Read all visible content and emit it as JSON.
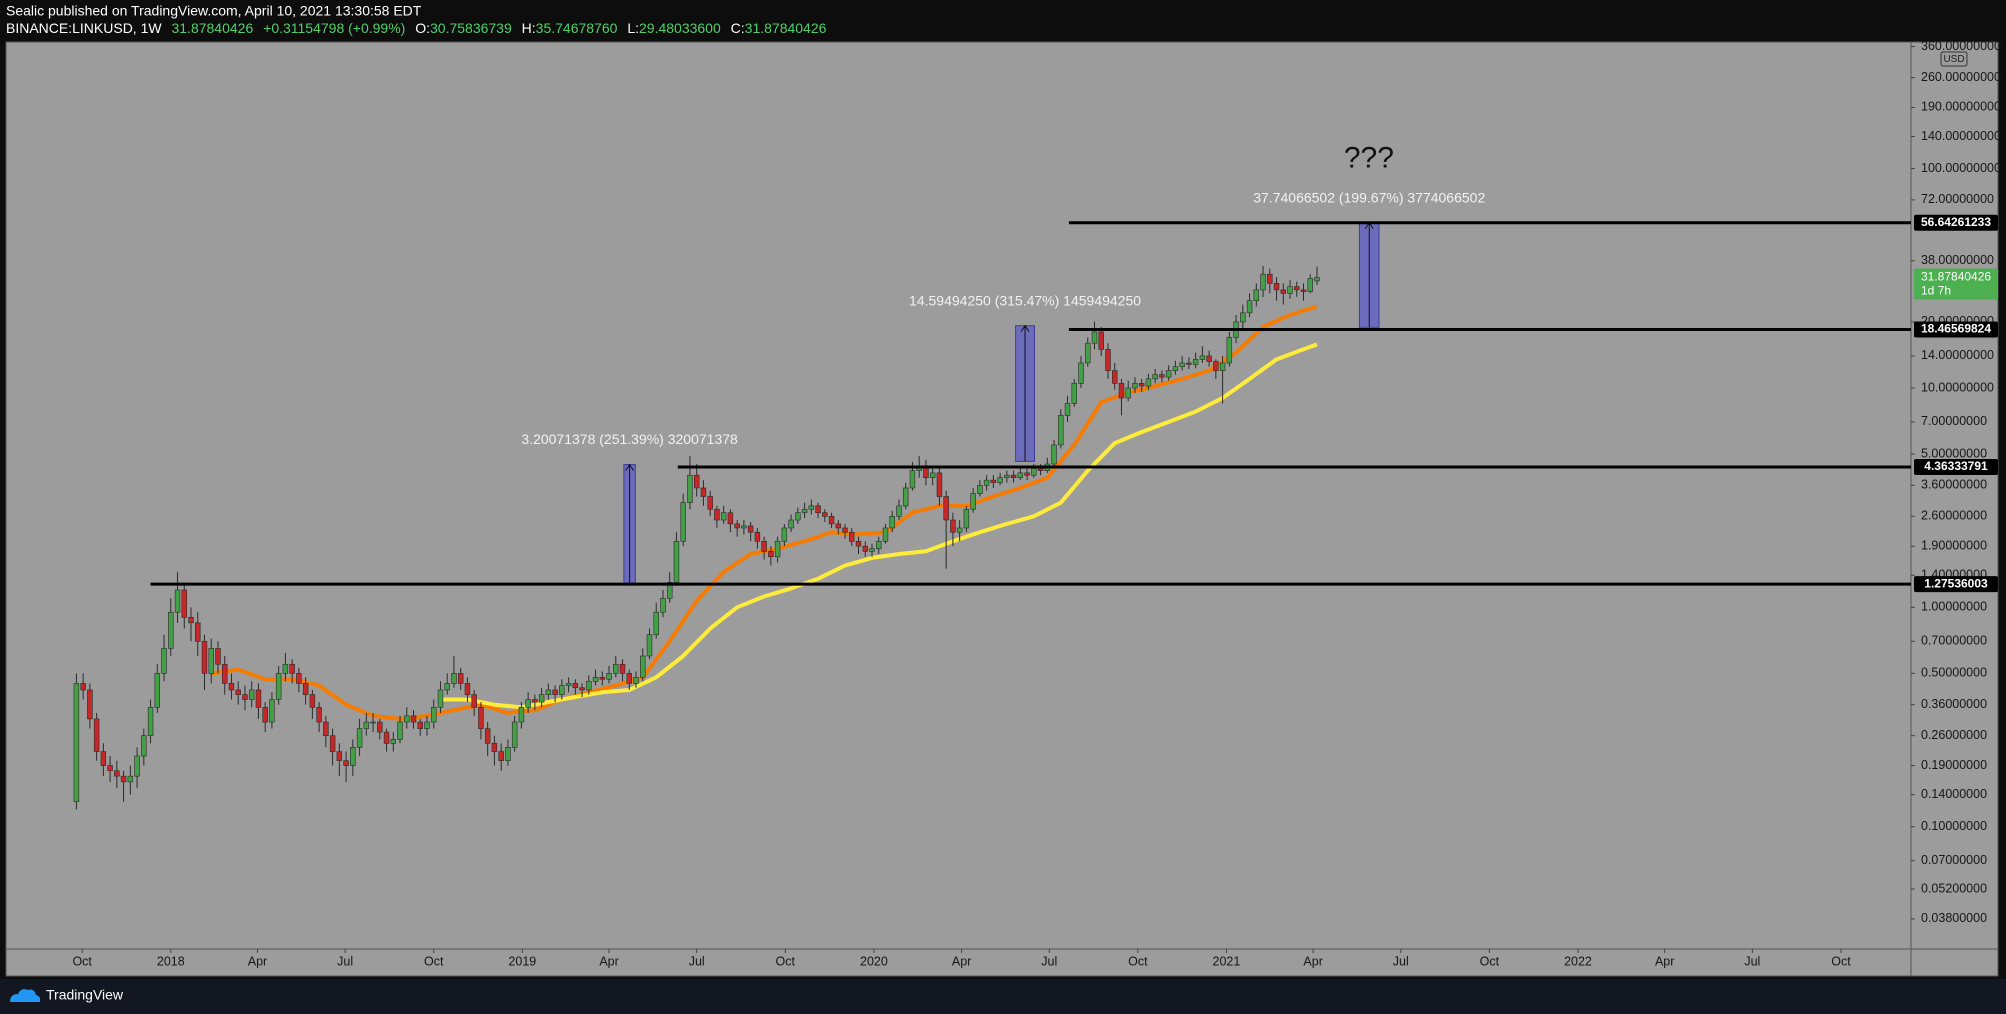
{
  "header": {
    "line1": "Sealic published on TradingView.com, April 10, 2021 13:30:58 EDT",
    "symbol": "BINANCE:LINKUSD, 1W",
    "price": "31.87840426",
    "change": "+0.31154798 (+0.99%)",
    "ohlc": [
      [
        "O:",
        "30.75836739"
      ],
      [
        "H:",
        "35.74678760"
      ],
      [
        "L:",
        "29.48033600"
      ],
      [
        "C:",
        "31.87840426"
      ]
    ]
  },
  "chart_data": {
    "type": "candlestick",
    "log_scale": true,
    "grid": false,
    "currency": "USD",
    "up_color": "#43a047",
    "down_color": "#c62828",
    "xlim": [
      -10.44,
      272.1
    ],
    "ylim": [
      0.0277,
      377.6
    ],
    "xticks": [
      {
        "value": 0.86,
        "label": "Oct"
      },
      {
        "value": 14,
        "label": "2018"
      },
      {
        "value": 26.86,
        "label": "Apr"
      },
      {
        "value": 39.86,
        "label": "Jul"
      },
      {
        "value": 53,
        "label": "Oct"
      },
      {
        "value": 66.14,
        "label": "2019"
      },
      {
        "value": 79,
        "label": "Apr"
      },
      {
        "value": 92,
        "label": "Jul"
      },
      {
        "value": 105.14,
        "label": "Oct"
      },
      {
        "value": 118.29,
        "label": "2020"
      },
      {
        "value": 131.29,
        "label": "Apr"
      },
      {
        "value": 144.29,
        "label": "Jul"
      },
      {
        "value": 157.43,
        "label": "Oct"
      },
      {
        "value": 170.57,
        "label": "2021"
      },
      {
        "value": 183.43,
        "label": "Apr"
      },
      {
        "value": 196.43,
        "label": "Jul"
      },
      {
        "value": 209.57,
        "label": "Oct"
      },
      {
        "value": 222.71,
        "label": "2022"
      },
      {
        "value": 235.57,
        "label": "Apr"
      },
      {
        "value": 248.57,
        "label": "Jul"
      },
      {
        "value": 261.71,
        "label": "Oct"
      }
    ],
    "yticks": [
      {
        "value": 360,
        "label": "360.00000000"
      },
      {
        "value": 260,
        "label": "260.00000000"
      },
      {
        "value": 190,
        "label": "190.00000000"
      },
      {
        "value": 140,
        "label": "140.00000000"
      },
      {
        "value": 100,
        "label": "100.00000000"
      },
      {
        "value": 72,
        "label": "72.00000000"
      },
      {
        "value": 38,
        "label": "38.00000000"
      },
      {
        "value": 20,
        "label": "20.00000000"
      },
      {
        "value": 14,
        "label": "14.00000000"
      },
      {
        "value": 10,
        "label": "10.00000000"
      },
      {
        "value": 7,
        "label": "7.00000000"
      },
      {
        "value": 5,
        "label": "5.00000000"
      },
      {
        "value": 3.6,
        "label": "3.60000000"
      },
      {
        "value": 2.6,
        "label": "2.60000000"
      },
      {
        "value": 1.9,
        "label": "1.90000000"
      },
      {
        "value": 1.4,
        "label": "1.40000000"
      },
      {
        "value": 1,
        "label": "1.00000000"
      },
      {
        "value": 0.7,
        "label": "0.70000000"
      },
      {
        "value": 0.5,
        "label": "0.50000000"
      },
      {
        "value": 0.36,
        "label": "0.36000000"
      },
      {
        "value": 0.26,
        "label": "0.26000000"
      },
      {
        "value": 0.19,
        "label": "0.19000000"
      },
      {
        "value": 0.14,
        "label": "0.14000000"
      },
      {
        "value": 0.1,
        "label": "0.10000000"
      },
      {
        "value": 0.07,
        "label": "0.07000000"
      },
      {
        "value": 0.052,
        "label": "0.05200000"
      },
      {
        "value": 0.038,
        "label": "0.03800000"
      }
    ],
    "x": [
      0,
      1,
      2,
      3,
      4,
      5,
      6,
      7,
      8,
      9,
      10,
      11,
      12,
      13,
      14,
      15,
      16,
      17,
      18,
      19,
      20,
      21,
      22,
      23,
      24,
      25,
      26,
      27,
      28,
      29,
      30,
      31,
      32,
      33,
      34,
      35,
      36,
      37,
      38,
      39,
      40,
      41,
      42,
      43,
      44,
      45,
      46,
      47,
      48,
      49,
      50,
      51,
      52,
      53,
      54,
      55,
      56,
      57,
      58,
      59,
      60,
      61,
      62,
      63,
      64,
      65,
      66,
      67,
      68,
      69,
      70,
      71,
      72,
      73,
      74,
      75,
      76,
      77,
      78,
      79,
      80,
      81,
      82,
      83,
      84,
      85,
      86,
      87,
      88,
      89,
      90,
      91,
      92,
      93,
      94,
      95,
      96,
      97,
      98,
      99,
      100,
      101,
      102,
      103,
      104,
      105,
      106,
      107,
      108,
      109,
      110,
      111,
      112,
      113,
      114,
      115,
      116,
      117,
      118,
      119,
      120,
      121,
      122,
      123,
      124,
      125,
      126,
      127,
      128,
      129,
      130,
      131,
      132,
      133,
      134,
      135,
      136,
      137,
      138,
      139,
      140,
      141,
      142,
      143,
      144,
      145,
      146,
      147,
      148,
      149,
      150,
      151,
      152,
      153,
      154,
      155,
      156,
      157,
      158,
      159,
      160,
      161,
      162,
      163,
      164,
      165,
      166,
      167,
      168,
      169,
      170,
      171,
      172,
      173,
      174,
      175,
      176,
      177,
      178,
      179,
      180,
      181,
      182,
      183,
      184
    ],
    "open": [
      0.13,
      0.45,
      0.42,
      0.31,
      0.22,
      0.19,
      0.18,
      0.17,
      0.16,
      0.17,
      0.21,
      0.26,
      0.35,
      0.5,
      0.65,
      0.95,
      1.2,
      0.9,
      0.85,
      0.7,
      0.5,
      0.65,
      0.55,
      0.45,
      0.42,
      0.4,
      0.38,
      0.42,
      0.35,
      0.3,
      0.38,
      0.5,
      0.55,
      0.5,
      0.45,
      0.4,
      0.35,
      0.3,
      0.26,
      0.22,
      0.2,
      0.19,
      0.23,
      0.28,
      0.3,
      0.3,
      0.27,
      0.24,
      0.25,
      0.3,
      0.32,
      0.3,
      0.28,
      0.3,
      0.35,
      0.42,
      0.45,
      0.5,
      0.45,
      0.4,
      0.35,
      0.28,
      0.24,
      0.22,
      0.2,
      0.23,
      0.3,
      0.35,
      0.38,
      0.37,
      0.4,
      0.42,
      0.4,
      0.44,
      0.45,
      0.43,
      0.42,
      0.46,
      0.48,
      0.47,
      0.5,
      0.55,
      0.5,
      0.45,
      0.48,
      0.6,
      0.75,
      0.95,
      1.1,
      1.3,
      2.0,
      3.0,
      4.0,
      3.5,
      3.2,
      2.8,
      2.5,
      2.7,
      2.4,
      2.3,
      2.35,
      2.2,
      2.0,
      1.8,
      1.7,
      2.0,
      2.3,
      2.5,
      2.7,
      2.8,
      2.9,
      2.7,
      2.6,
      2.4,
      2.3,
      2.2,
      2.0,
      1.9,
      1.8,
      1.85,
      2.0,
      2.3,
      2.6,
      2.9,
      3.5,
      4.2,
      4.4,
      3.9,
      4.1,
      3.2,
      2.5,
      2.2,
      2.3,
      2.8,
      3.3,
      3.6,
      3.8,
      3.7,
      3.9,
      4.0,
      3.9,
      4.1,
      4.0,
      4.3,
      4.2,
      4.5,
      5.5,
      7.5,
      8.5,
      10.5,
      13,
      16,
      18,
      15,
      12,
      10.5,
      9,
      10,
      10.5,
      10.2,
      11,
      11.5,
      11.2,
      12,
      12.5,
      13,
      12.8,
      13.5,
      14,
      13.2,
      12,
      13,
      17,
      20,
      22,
      25,
      28,
      33,
      30,
      28,
      27,
      29,
      28,
      27.5,
      30.75836739
    ],
    "high": [
      0.5,
      0.5,
      0.45,
      0.33,
      0.24,
      0.21,
      0.2,
      0.18,
      0.19,
      0.23,
      0.28,
      0.38,
      0.55,
      0.75,
      1.1,
      1.45,
      1.3,
      1.0,
      0.95,
      0.75,
      0.72,
      0.7,
      0.6,
      0.5,
      0.46,
      0.44,
      0.46,
      0.45,
      0.37,
      0.41,
      0.54,
      0.62,
      0.58,
      0.53,
      0.48,
      0.42,
      0.37,
      0.32,
      0.28,
      0.24,
      0.22,
      0.25,
      0.31,
      0.33,
      0.33,
      0.31,
      0.28,
      0.27,
      0.32,
      0.35,
      0.34,
      0.31,
      0.32,
      0.38,
      0.46,
      0.5,
      0.6,
      0.53,
      0.48,
      0.42,
      0.37,
      0.3,
      0.26,
      0.24,
      0.25,
      0.32,
      0.37,
      0.41,
      0.4,
      0.43,
      0.45,
      0.44,
      0.47,
      0.48,
      0.47,
      0.45,
      0.49,
      0.52,
      0.51,
      0.54,
      0.6,
      0.58,
      0.52,
      0.51,
      0.65,
      0.8,
      1.05,
      1.2,
      1.45,
      2.2,
      3.3,
      4.9,
      4.5,
      3.8,
      3.4,
      2.9,
      2.9,
      2.8,
      2.5,
      2.5,
      2.45,
      2.3,
      2.1,
      1.9,
      2.1,
      2.4,
      2.65,
      2.85,
      3.0,
      3.1,
      3.0,
      2.8,
      2.7,
      2.5,
      2.4,
      2.3,
      2.1,
      2.0,
      1.95,
      2.1,
      2.4,
      2.75,
      3.1,
      3.7,
      4.6,
      4.9,
      4.7,
      4.4,
      4.3,
      3.4,
      2.7,
      2.5,
      2.9,
      3.5,
      3.8,
      4.0,
      4.0,
      4.1,
      4.2,
      4.2,
      4.3,
      4.3,
      4.5,
      4.5,
      4.8,
      5.8,
      8.0,
      9.2,
      11,
      14,
      17,
      20.1,
      19,
      16,
      13,
      11,
      10.8,
      11.2,
      11,
      11.6,
      12.2,
      12,
      12.7,
      13.3,
      14,
      13.8,
      14.5,
      15.5,
      14.8,
      13.5,
      14,
      18,
      21.5,
      24,
      27,
      30,
      36,
      35,
      32,
      30,
      31,
      30.5,
      30,
      33,
      35.7467876
    ],
    "low": [
      0.12,
      0.38,
      0.28,
      0.2,
      0.17,
      0.16,
      0.15,
      0.13,
      0.14,
      0.15,
      0.19,
      0.24,
      0.33,
      0.46,
      0.6,
      0.85,
      0.8,
      0.7,
      0.6,
      0.42,
      0.45,
      0.5,
      0.4,
      0.38,
      0.36,
      0.34,
      0.35,
      0.31,
      0.27,
      0.28,
      0.36,
      0.46,
      0.45,
      0.41,
      0.36,
      0.31,
      0.27,
      0.23,
      0.19,
      0.17,
      0.16,
      0.17,
      0.21,
      0.26,
      0.27,
      0.25,
      0.22,
      0.22,
      0.24,
      0.28,
      0.28,
      0.26,
      0.26,
      0.28,
      0.33,
      0.4,
      0.43,
      0.42,
      0.37,
      0.32,
      0.25,
      0.21,
      0.19,
      0.18,
      0.19,
      0.22,
      0.28,
      0.33,
      0.34,
      0.35,
      0.38,
      0.37,
      0.38,
      0.41,
      0.4,
      0.39,
      0.4,
      0.44,
      0.44,
      0.45,
      0.48,
      0.46,
      0.42,
      0.43,
      0.46,
      0.58,
      0.72,
      0.9,
      1.05,
      1.25,
      1.9,
      2.8,
      3.2,
      2.9,
      2.6,
      2.3,
      2.4,
      2.2,
      2.1,
      2.15,
      2.0,
      1.85,
      1.65,
      1.55,
      1.6,
      1.9,
      2.2,
      2.4,
      2.55,
      2.65,
      2.55,
      2.45,
      2.3,
      2.15,
      2.05,
      1.9,
      1.75,
      1.7,
      1.7,
      1.75,
      1.95,
      2.2,
      2.5,
      2.8,
      3.4,
      3.9,
      3.6,
      3.6,
      2.9,
      1.5,
      1.9,
      2.0,
      2.2,
      2.7,
      3.2,
      3.4,
      3.5,
      3.6,
      3.7,
      3.7,
      3.8,
      3.8,
      3.9,
      4.0,
      4.1,
      4.4,
      5.3,
      7.0,
      8.2,
      10,
      12.5,
      15,
      14,
      11,
      9.8,
      7.5,
      8.7,
      9.5,
      9.6,
      9.8,
      10.5,
      10.6,
      10.8,
      11.5,
      12,
      12.2,
      12.3,
      13,
      12.5,
      11,
      8.5,
      12.5,
      16,
      18.5,
      21,
      23.5,
      26,
      27,
      25,
      24,
      25.5,
      26,
      25,
      27,
      29.480336
    ],
    "close": [
      0.45,
      0.42,
      0.31,
      0.22,
      0.19,
      0.18,
      0.17,
      0.16,
      0.17,
      0.21,
      0.26,
      0.35,
      0.5,
      0.65,
      0.95,
      1.2,
      0.9,
      0.85,
      0.7,
      0.5,
      0.65,
      0.55,
      0.45,
      0.42,
      0.4,
      0.38,
      0.42,
      0.35,
      0.3,
      0.38,
      0.5,
      0.55,
      0.5,
      0.45,
      0.4,
      0.35,
      0.3,
      0.26,
      0.22,
      0.2,
      0.19,
      0.23,
      0.28,
      0.3,
      0.3,
      0.27,
      0.24,
      0.25,
      0.3,
      0.32,
      0.3,
      0.28,
      0.3,
      0.35,
      0.42,
      0.45,
      0.5,
      0.45,
      0.4,
      0.35,
      0.28,
      0.24,
      0.22,
      0.2,
      0.23,
      0.3,
      0.35,
      0.38,
      0.37,
      0.4,
      0.42,
      0.4,
      0.44,
      0.45,
      0.43,
      0.42,
      0.46,
      0.48,
      0.47,
      0.5,
      0.55,
      0.5,
      0.45,
      0.48,
      0.6,
      0.75,
      0.95,
      1.1,
      1.3,
      2.0,
      3.0,
      4.0,
      3.5,
      3.2,
      2.8,
      2.5,
      2.7,
      2.4,
      2.3,
      2.35,
      2.2,
      2.0,
      1.8,
      1.7,
      2.0,
      2.3,
      2.5,
      2.7,
      2.8,
      2.9,
      2.7,
      2.6,
      2.4,
      2.3,
      2.2,
      2.0,
      1.9,
      1.8,
      1.85,
      2.0,
      2.3,
      2.6,
      2.9,
      3.5,
      4.2,
      4.4,
      3.9,
      4.1,
      3.2,
      2.5,
      2.2,
      2.3,
      2.8,
      3.3,
      3.6,
      3.8,
      3.7,
      3.9,
      4.0,
      3.9,
      4.1,
      4.0,
      4.3,
      4.2,
      4.5,
      5.5,
      7.5,
      8.5,
      10.5,
      13,
      16,
      18,
      15,
      12,
      10.5,
      9,
      10,
      10.5,
      10.2,
      11,
      11.5,
      11.2,
      12,
      12.5,
      13,
      12.8,
      13.5,
      14,
      13.2,
      12,
      13,
      17,
      20,
      22,
      25,
      28,
      33,
      30,
      28,
      27,
      29,
      28,
      27.5,
      31.56,
      31.87840426
    ],
    "moving_averages": [
      {
        "color": "#f57c00",
        "x": [
          20,
          24,
          28,
          32,
          36,
          40,
          44,
          48,
          52,
          56,
          60,
          64,
          68,
          72,
          76,
          80,
          84,
          88,
          92,
          96,
          100,
          104,
          108,
          112,
          116,
          120,
          124,
          128,
          132,
          136,
          140,
          144,
          148,
          152,
          156,
          160,
          164,
          168,
          172,
          176,
          180,
          184
        ],
        "values": [
          0.5,
          0.52,
          0.47,
          0.47,
          0.44,
          0.36,
          0.32,
          0.31,
          0.32,
          0.34,
          0.36,
          0.33,
          0.34,
          0.38,
          0.41,
          0.44,
          0.48,
          0.7,
          1.07,
          1.45,
          1.75,
          1.85,
          2.0,
          2.2,
          2.15,
          2.2,
          2.7,
          2.9,
          2.9,
          3.2,
          3.5,
          3.9,
          5.5,
          8.6,
          9.5,
          10.2,
          11,
          12,
          14.5,
          19,
          21.5,
          23.5
        ]
      },
      {
        "color": "#ffeb3b",
        "x": [
          54,
          58,
          62,
          66,
          70,
          74,
          78,
          82,
          86,
          90,
          94,
          98,
          102,
          106,
          110,
          114,
          118,
          122,
          126,
          130,
          134,
          138,
          142,
          146,
          150,
          154,
          158,
          162,
          166,
          170,
          174,
          178,
          182,
          184
        ],
        "values": [
          0.38,
          0.38,
          0.36,
          0.35,
          0.37,
          0.39,
          0.41,
          0.42,
          0.48,
          0.6,
          0.8,
          1.0,
          1.12,
          1.22,
          1.35,
          1.55,
          1.68,
          1.75,
          1.8,
          2.0,
          2.2,
          2.4,
          2.6,
          3.0,
          4.2,
          5.6,
          6.3,
          7,
          7.8,
          9,
          11,
          13.5,
          15,
          15.8
        ]
      }
    ],
    "levels": [
      {
        "value": 56.64261233,
        "x_start": 147.2
      },
      {
        "value": 18.46569824,
        "x_start": 147.2
      },
      {
        "value": 4.36333791,
        "x_start": 89.2
      },
      {
        "value": 1.27536003,
        "x_start": 11
      }
    ],
    "measures": [
      {
        "x": [
          81.2,
          82.9
        ],
        "low": 1.27536003,
        "high": 4.47607381,
        "label": "3.20071378 (251.39%) 320071378"
      },
      {
        "x": [
          139.3,
          142.1
        ],
        "low": 4.6264,
        "high": 19.2214,
        "label": "14.59494250 (315.47%) 1459494250"
      },
      {
        "x": [
          190.3,
          193.2
        ],
        "low": 18.9022,
        "high": 56.6429,
        "label": "37.74066502 (199.67%) 3774066502"
      }
    ],
    "annotation": {
      "text": "???",
      "x": 191.7,
      "y": 110
    },
    "last_price": {
      "value": 31.87840426,
      "countdown": "1d 7h",
      "color": "#4caf50"
    }
  },
  "footer": {
    "brand": "TradingView"
  }
}
